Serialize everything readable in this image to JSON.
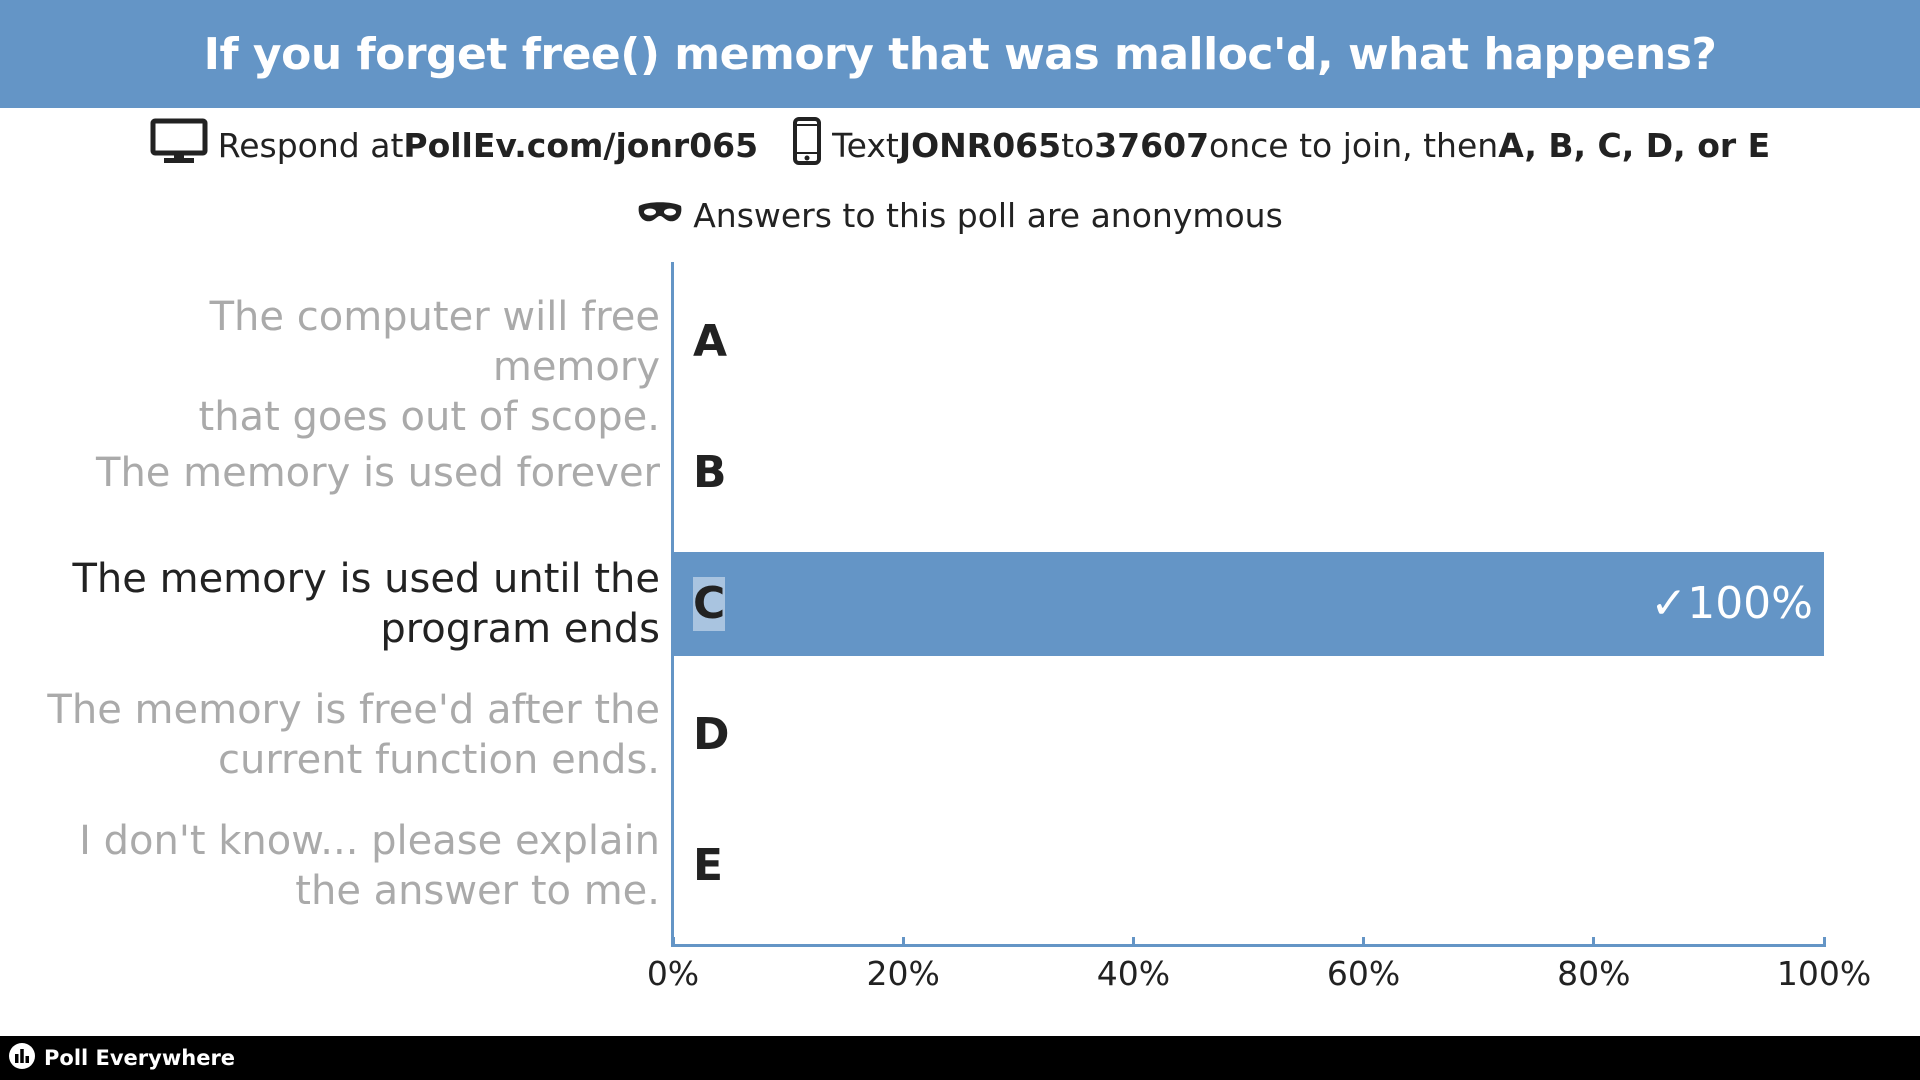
{
  "header": {
    "title": "If you forget free() memory that was malloc'd, what happens?"
  },
  "respond": {
    "prefix": "Respond at ",
    "url": "PollEv.com/jonr065",
    "text_prefix": "Text ",
    "code": "JONR065",
    "to": " to ",
    "number": "37607",
    "once": " once to join, then ",
    "options": "A, B, C, D, or E"
  },
  "anonymous": {
    "text": "Answers to this poll are anonymous"
  },
  "icons": {
    "monitor": "monitor-icon",
    "phone": "phone-icon",
    "mask": "mask-icon",
    "logo": "poll-everywhere-logo-icon"
  },
  "colors": {
    "accent": "#6495c6",
    "correct_text": "#222222",
    "incorrect_text": "#aaaaaa"
  },
  "chart_data": {
    "type": "bar",
    "orientation": "horizontal",
    "categories": [
      "A",
      "B",
      "C",
      "D",
      "E"
    ],
    "category_labels": [
      [
        "The computer will free memory",
        "that goes out of scope."
      ],
      [
        "The memory is used forever"
      ],
      [
        "The memory is used until the",
        "program ends"
      ],
      [
        "The memory is free'd after the",
        "current function ends."
      ],
      [
        "I don't know... please explain",
        "the answer to me."
      ]
    ],
    "values": [
      0,
      0,
      100,
      0,
      0
    ],
    "correct": [
      false,
      false,
      true,
      false,
      false
    ],
    "data_labels": [
      "",
      "",
      "✓100%",
      "",
      ""
    ],
    "xlim": [
      0,
      100
    ],
    "xticks": [
      0,
      20,
      40,
      60,
      80,
      100
    ],
    "xtick_labels": [
      "0%",
      "20%",
      "40%",
      "60%",
      "80%",
      "100%"
    ]
  },
  "footer": {
    "brand": "Poll Everywhere"
  }
}
